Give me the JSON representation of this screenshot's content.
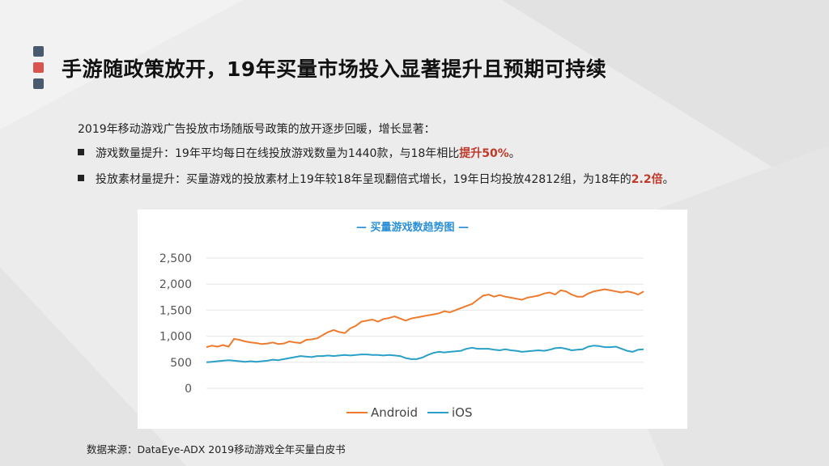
{
  "slide": {
    "title": "手游随政策放开，19年买量市场投入显著提升且预期可持续",
    "intro": "2019年移动游戏广告投放市场随版号政策的放开逐步回暖，增长显著：",
    "bullets": [
      {
        "text": "游戏数量提升：19年平均每日在线投放游戏数量为1440款，与18年相比",
        "highlight": "提升50%",
        "suffix": "。"
      },
      {
        "text": "投放素材量提升：买量游戏的投放素材上19年较18年呈现翻倍式增长，19年日均投放42812组，为18年的",
        "highlight": "2.2倍",
        "suffix": "。"
      }
    ],
    "source": "数据来源：DataEye-ADX 2019移动游戏全年买量白皮书"
  },
  "colors": {
    "accent_top": "#4a5a6e",
    "accent_mid": "#d9534f",
    "accent_bottom": "#4a5a6e",
    "highlight": "#c0392b",
    "chart_title": "#2a8fd8",
    "android": "#ee7b2d",
    "ios": "#2aa0c8"
  },
  "chart_data": {
    "type": "line",
    "title": "— 买量游戏数趋势图 —",
    "y_ticks": [
      "0",
      "500",
      "1,000",
      "1,500",
      "2,000",
      "2,500"
    ],
    "y_tick_values": [
      0,
      500,
      1000,
      1500,
      2000,
      2500
    ],
    "ylim": [
      0,
      2500
    ],
    "grid": true,
    "legend_position": "bottom",
    "x_note": "daily values, no x tick labels shown",
    "series": [
      {
        "name": "Android",
        "color": "#ee7b2d",
        "values": [
          790,
          820,
          800,
          830,
          800,
          950,
          930,
          900,
          880,
          870,
          850,
          860,
          880,
          850,
          860,
          900,
          880,
          870,
          930,
          940,
          960,
          1020,
          1080,
          1120,
          1080,
          1060,
          1150,
          1200,
          1280,
          1300,
          1320,
          1280,
          1330,
          1350,
          1380,
          1340,
          1300,
          1340,
          1360,
          1380,
          1400,
          1420,
          1440,
          1480,
          1460,
          1500,
          1540,
          1580,
          1620,
          1700,
          1780,
          1800,
          1760,
          1790,
          1760,
          1740,
          1720,
          1700,
          1740,
          1760,
          1780,
          1820,
          1840,
          1800,
          1880,
          1860,
          1800,
          1760,
          1760,
          1820,
          1860,
          1880,
          1900,
          1880,
          1860,
          1840,
          1860,
          1840,
          1800,
          1860
        ]
      },
      {
        "name": "iOS",
        "color": "#2aa0c8",
        "values": [
          500,
          510,
          520,
          530,
          540,
          530,
          520,
          510,
          520,
          510,
          520,
          530,
          550,
          540,
          560,
          580,
          600,
          620,
          610,
          600,
          620,
          620,
          630,
          620,
          630,
          640,
          630,
          640,
          650,
          650,
          640,
          640,
          630,
          640,
          630,
          620,
          580,
          560,
          560,
          590,
          640,
          680,
          700,
          690,
          700,
          710,
          720,
          760,
          780,
          760,
          760,
          760,
          740,
          730,
          750,
          730,
          720,
          700,
          710,
          720,
          730,
          720,
          740,
          770,
          780,
          760,
          730,
          740,
          750,
          800,
          820,
          810,
          790,
          790,
          800,
          760,
          720,
          700,
          740,
          750
        ]
      }
    ]
  }
}
